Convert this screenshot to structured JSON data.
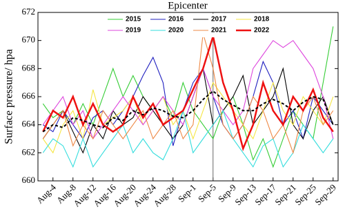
{
  "chart_data": {
    "type": "line",
    "title": "Epicenter",
    "y_label": "Surface pressure/ hpa",
    "categories": [
      null,
      "Aug-4",
      null,
      "Aug-8",
      null,
      "Aug-12",
      null,
      "Aug-16",
      null,
      "Aug-20",
      null,
      "Aug-24",
      null,
      "Aug-28",
      null,
      "Sep-1",
      null,
      "Sep-5",
      null,
      "Sep-9",
      null,
      "Sep-13",
      null,
      "Sep-17",
      null,
      "Sep-21",
      null,
      "Sep-25",
      null,
      "Sep-29"
    ],
    "vertical_line": "Sep-5",
    "ylim": [
      660,
      672
    ],
    "yticks": [
      660,
      662,
      664,
      666,
      668,
      670,
      672
    ],
    "series": [
      {
        "name": "2015",
        "color": "#33cc33",
        "values": [
          665.5,
          664.5,
          665,
          664,
          665.5,
          664,
          666,
          668,
          666,
          667.5,
          666,
          665,
          666,
          664.5,
          667,
          665,
          664,
          663,
          665,
          666,
          664,
          661.5,
          663,
          661,
          663,
          665,
          664,
          663,
          667,
          671
        ]
      },
      {
        "name": "2016",
        "color": "#1f1fbf",
        "values": [
          664,
          663.5,
          665,
          664,
          663,
          664.5,
          665,
          664,
          665,
          666,
          667.5,
          668.8,
          667,
          662.5,
          665,
          667,
          668,
          666,
          664,
          663,
          664,
          666,
          668.5,
          667,
          664,
          665,
          663,
          666,
          665,
          664
        ]
      },
      {
        "name": "2017",
        "color": "#000000",
        "values": [
          663,
          664,
          665,
          663.5,
          662,
          664,
          663,
          665,
          664,
          664.5,
          666,
          665,
          664,
          663,
          664,
          666,
          668,
          664,
          665,
          666,
          667.5,
          664,
          665,
          666,
          668,
          664,
          663,
          665,
          666,
          664
        ]
      },
      {
        "name": "2018",
        "color": "#f5e642",
        "values": [
          663,
          662,
          664,
          665,
          663,
          666.5,
          664,
          664.5,
          665,
          666,
          664,
          665,
          666,
          664,
          665,
          663,
          665,
          667,
          666,
          665,
          664,
          663,
          665,
          667,
          665,
          664,
          666,
          665,
          664,
          666
        ]
      },
      {
        "name": "2019",
        "color": "#dd44dd",
        "values": [
          664,
          665,
          666,
          664,
          665,
          663,
          664,
          665,
          666,
          665,
          664,
          665,
          666,
          665,
          664,
          666,
          668,
          666,
          665,
          664,
          665,
          668,
          669,
          670,
          669.5,
          670,
          669,
          668,
          666,
          663
        ]
      },
      {
        "name": "2020",
        "color": "#33dddd",
        "values": [
          662,
          663,
          662.5,
          661,
          663,
          661,
          662,
          663,
          664,
          662,
          663,
          662,
          661.5,
          663,
          665,
          662,
          663,
          664,
          665,
          663,
          662,
          661,
          662.5,
          663,
          661,
          662,
          664,
          663,
          662,
          663
        ]
      },
      {
        "name": "2021",
        "color": "#ee8844",
        "values": [
          663,
          664,
          665,
          662.5,
          664,
          663,
          665,
          664,
          663,
          664,
          665,
          663,
          664,
          665,
          663,
          664,
          670.5,
          668,
          664,
          663,
          664,
          666,
          665,
          663,
          664,
          662,
          665,
          666,
          664,
          665
        ]
      },
      {
        "name": "2022",
        "color": "#ee1111",
        "width": 2.5,
        "values": [
          663.5,
          665,
          664.5,
          666,
          664,
          665.5,
          664,
          663.5,
          664,
          666,
          664.5,
          665.5,
          664,
          664.5,
          665,
          666.5,
          668,
          670.3,
          667,
          665,
          662.3,
          664,
          667,
          665,
          664,
          666,
          665,
          666.5,
          664.5,
          663.5
        ]
      },
      {
        "color": "#000000",
        "dash": true,
        "width": 2,
        "values": [
          663.5,
          664,
          663.8,
          664.5,
          664.3,
          664,
          663.8,
          664.5,
          664.3,
          665,
          664.7,
          665.2,
          665,
          664.6,
          664.5,
          665,
          665.8,
          666.4,
          665.8,
          665.4,
          665,
          665,
          665.5,
          665.8,
          665.5,
          665,
          665.6,
          666,
          665.8,
          664
        ]
      }
    ]
  }
}
